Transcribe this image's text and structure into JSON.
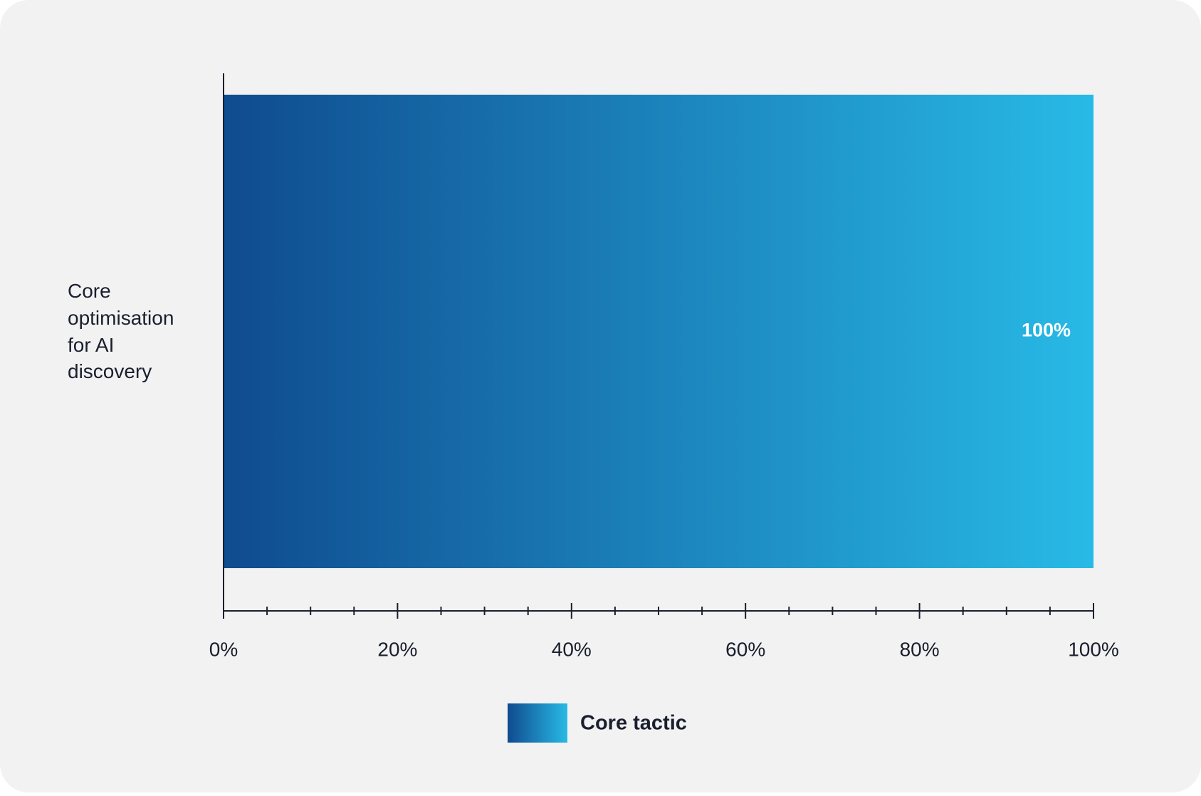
{
  "chart_data": {
    "type": "hbar",
    "categories": [
      "Core optimisation for AI discovery"
    ],
    "series": [
      {
        "name": "Core tactic",
        "colors": [
          "#0f4b8f",
          "#28bae6"
        ],
        "values": [
          100
        ],
        "value_labels": [
          "100%"
        ]
      }
    ],
    "xlim": [
      0,
      100
    ],
    "xticks": [
      {
        "value": 0,
        "label": "0%"
      },
      {
        "value": 20,
        "label": "20%"
      },
      {
        "value": 40,
        "label": "40%"
      },
      {
        "value": 60,
        "label": "60%"
      },
      {
        "value": 80,
        "label": "80%"
      },
      {
        "value": 100,
        "label": "100%"
      }
    ],
    "xminorticks": [
      5,
      10,
      15,
      25,
      30,
      35,
      45,
      50,
      55,
      65,
      70,
      75,
      85,
      90,
      95
    ],
    "legend": "bottom"
  }
}
